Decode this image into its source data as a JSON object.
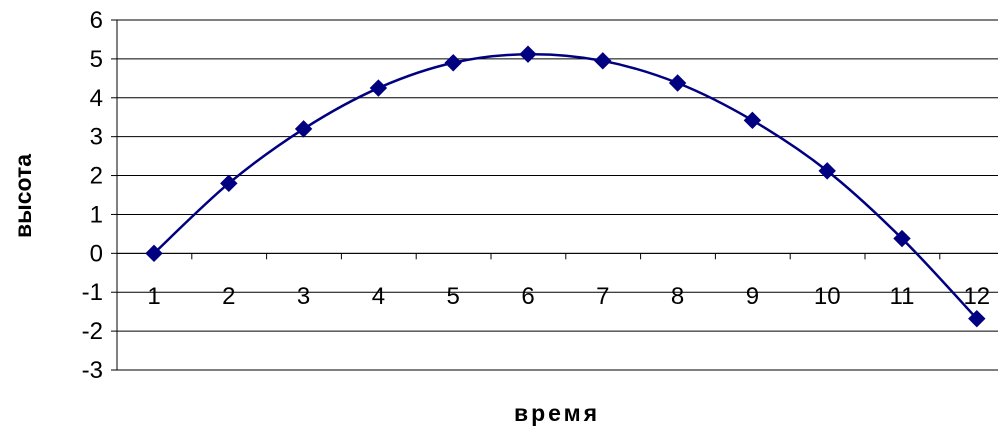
{
  "chart_data": {
    "type": "line",
    "title": "",
    "xlabel": "время",
    "ylabel": "высота",
    "x": [
      1,
      2,
      3,
      4,
      5,
      6,
      7,
      8,
      9,
      10,
      11,
      12
    ],
    "series": [
      {
        "values": [
          0,
          1.8,
          3.2,
          4.25,
          4.9,
          5.12,
          4.95,
          4.38,
          3.42,
          2.12,
          0.38,
          -1.68
        ]
      }
    ],
    "ylim": [
      -3,
      6
    ],
    "yticks": [
      "6",
      "5",
      "4",
      "3",
      "2",
      "1",
      "0",
      "-1",
      "-2",
      "-3"
    ],
    "xticks": [
      "1",
      "2",
      "3",
      "4",
      "5",
      "6",
      "7",
      "8",
      "9",
      "10",
      "11",
      "12"
    ],
    "grid": "horizontal",
    "smoothed": true,
    "marker": "diamond",
    "series_color": "#000080",
    "legend": "none"
  }
}
